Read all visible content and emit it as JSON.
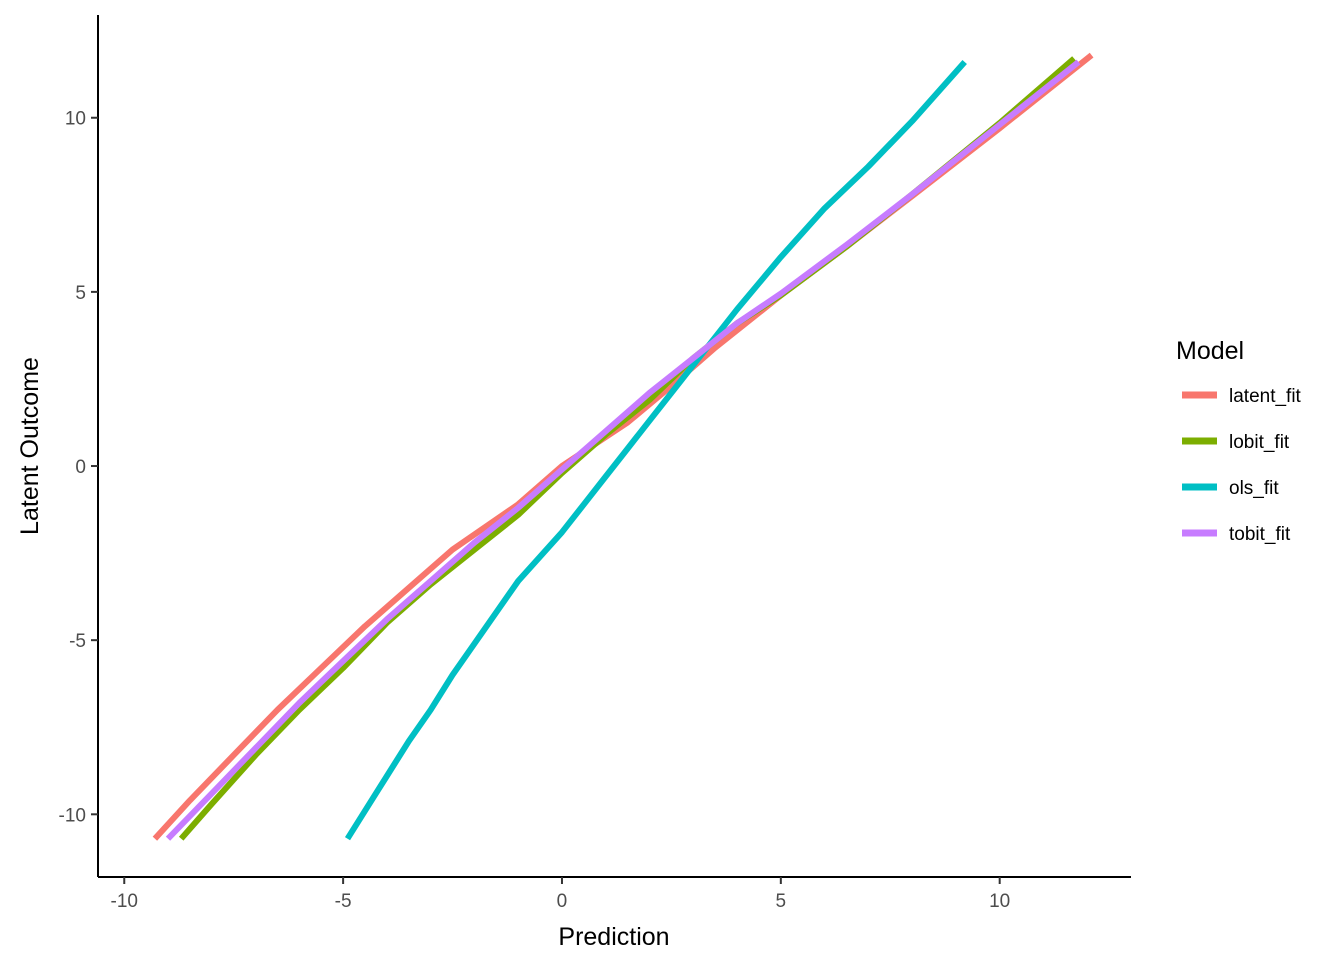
{
  "chart_data": {
    "type": "line",
    "title": "",
    "xlabel": "Prediction",
    "ylabel": "Latent Outcome",
    "xlim": [
      -10.6,
      13.0
    ],
    "ylim": [
      -11.8,
      12.95
    ],
    "xticks": [
      -10,
      -5,
      0,
      5,
      10
    ],
    "yticks": [
      -10,
      -5,
      0,
      5,
      10
    ],
    "xtick_labels": [
      "-10",
      "-5",
      "0",
      "5",
      "10"
    ],
    "ytick_labels": [
      "-10",
      "-5",
      "0",
      "5",
      "10"
    ],
    "grid": false,
    "legend": {
      "title": "Model",
      "position": "right"
    },
    "series": [
      {
        "name": "latent_fit",
        "color": "#F8766D",
        "points": [
          [
            -9.3,
            -10.7
          ],
          [
            -8.5,
            -9.6
          ],
          [
            -7.5,
            -8.3
          ],
          [
            -6.5,
            -7.0
          ],
          [
            -5.5,
            -5.8
          ],
          [
            -4.5,
            -4.6
          ],
          [
            -3.5,
            -3.5
          ],
          [
            -2.5,
            -2.4
          ],
          [
            -1.0,
            -1.1
          ],
          [
            0.0,
            0.0
          ],
          [
            1.5,
            1.25
          ],
          [
            2.5,
            2.3
          ],
          [
            3.5,
            3.4
          ],
          [
            5.0,
            4.9
          ],
          [
            6.5,
            6.3
          ],
          [
            8.0,
            7.75
          ],
          [
            10.0,
            9.7
          ],
          [
            12.1,
            11.8
          ]
        ]
      },
      {
        "name": "lobit_fit",
        "color": "#7CAE00",
        "points": [
          [
            -8.7,
            -10.7
          ],
          [
            -8.0,
            -9.7
          ],
          [
            -7.0,
            -8.3
          ],
          [
            -6.0,
            -7.0
          ],
          [
            -5.0,
            -5.8
          ],
          [
            -4.0,
            -4.5
          ],
          [
            -3.0,
            -3.4
          ],
          [
            -2.0,
            -2.4
          ],
          [
            -1.0,
            -1.4
          ],
          [
            0.0,
            -0.2
          ],
          [
            1.0,
            0.9
          ],
          [
            2.0,
            1.9
          ],
          [
            3.0,
            3.1
          ],
          [
            4.0,
            4.1
          ],
          [
            5.0,
            4.9
          ],
          [
            6.5,
            6.3
          ],
          [
            8.0,
            7.8
          ],
          [
            10.0,
            9.85
          ],
          [
            11.7,
            11.7
          ]
        ]
      },
      {
        "name": "ols_fit",
        "color": "#00BFC4",
        "points": [
          [
            -4.9,
            -10.7
          ],
          [
            -4.5,
            -9.9
          ],
          [
            -4.0,
            -8.9
          ],
          [
            -3.5,
            -7.9
          ],
          [
            -3.0,
            -7.0
          ],
          [
            -2.5,
            -6.0
          ],
          [
            -2.0,
            -5.1
          ],
          [
            -1.5,
            -4.2
          ],
          [
            -1.0,
            -3.3
          ],
          [
            -0.5,
            -2.6
          ],
          [
            0.0,
            -1.9
          ],
          [
            0.5,
            -1.1
          ],
          [
            1.0,
            -0.3
          ],
          [
            1.5,
            0.5
          ],
          [
            2.0,
            1.3
          ],
          [
            2.5,
            2.1
          ],
          [
            3.0,
            2.9
          ],
          [
            3.5,
            3.7
          ],
          [
            4.0,
            4.5
          ],
          [
            5.0,
            6.0
          ],
          [
            6.0,
            7.4
          ],
          [
            7.0,
            8.6
          ],
          [
            8.0,
            9.9
          ],
          [
            9.2,
            11.6
          ]
        ]
      },
      {
        "name": "tobit_fit",
        "color": "#C77CFF",
        "points": [
          [
            -9.0,
            -10.7
          ],
          [
            -8.0,
            -9.4
          ],
          [
            -7.0,
            -8.1
          ],
          [
            -6.0,
            -6.8
          ],
          [
            -5.0,
            -5.6
          ],
          [
            -4.0,
            -4.4
          ],
          [
            -3.0,
            -3.3
          ],
          [
            -2.0,
            -2.2
          ],
          [
            -1.0,
            -1.2
          ],
          [
            0.0,
            -0.1
          ],
          [
            1.0,
            1.0
          ],
          [
            2.0,
            2.1
          ],
          [
            3.0,
            3.1
          ],
          [
            4.0,
            4.1
          ],
          [
            5.0,
            4.95
          ],
          [
            6.5,
            6.35
          ],
          [
            8.0,
            7.8
          ],
          [
            10.0,
            9.8
          ],
          [
            11.8,
            11.6
          ]
        ]
      }
    ]
  }
}
